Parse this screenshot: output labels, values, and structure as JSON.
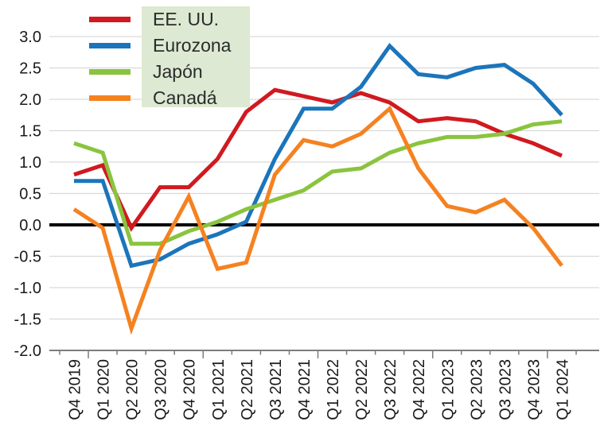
{
  "chart_data": {
    "type": "line",
    "title": "",
    "xlabel": "",
    "ylabel": "",
    "categories": [
      "Q4 2019",
      "Q1 2020",
      "Q2 2020",
      "Q3 2020",
      "Q4 2020",
      "Q1 2021",
      "Q2 2021",
      "Q3 2021",
      "Q4 2021",
      "Q1 2022",
      "Q2 2022",
      "Q3 2022",
      "Q4 2022",
      "Q1 2023",
      "Q2 2023",
      "Q3 2023",
      "Q4 2023",
      "Q1 2024"
    ],
    "series": [
      {
        "name": "EE. UU.",
        "color": "#d11920",
        "values": [
          0.8,
          0.95,
          -0.05,
          0.6,
          0.6,
          1.05,
          1.8,
          2.15,
          2.05,
          1.95,
          2.1,
          1.95,
          1.65,
          1.7,
          1.65,
          1.45,
          1.3,
          1.1
        ]
      },
      {
        "name": "Eurozona",
        "color": "#1b75bb",
        "values": [
          0.7,
          0.7,
          -0.65,
          -0.55,
          -0.3,
          -0.15,
          0.05,
          1.05,
          1.85,
          1.85,
          2.2,
          2.85,
          2.4,
          2.35,
          2.5,
          2.55,
          2.25,
          1.75
        ]
      },
      {
        "name": "Japón",
        "color": "#8ac43f",
        "values": [
          1.3,
          1.15,
          -0.3,
          -0.3,
          -0.1,
          0.05,
          0.25,
          0.4,
          0.55,
          0.85,
          0.9,
          1.15,
          1.3,
          1.4,
          1.4,
          1.45,
          1.6,
          1.65
        ]
      },
      {
        "name": "Canadá",
        "color": "#f58220",
        "values": [
          0.25,
          -0.05,
          -1.65,
          -0.4,
          0.45,
          -0.7,
          -0.6,
          0.8,
          1.35,
          1.25,
          1.45,
          1.85,
          0.9,
          0.3,
          0.2,
          0.4,
          -0.05,
          -0.65
        ]
      }
    ],
    "ylim": [
      -2.0,
      3.0
    ],
    "y_ticks": [
      "3.0",
      "2.5",
      "2.0",
      "1.5",
      "1.0",
      "0.5",
      "0.0",
      "-0.5",
      "-1.0",
      "-1.5",
      "-2.0"
    ],
    "grid": true,
    "zero_line": true,
    "legend_position": "top-left",
    "style": {
      "grid_color": "#d9d9d9",
      "zero_line_color": "#000000",
      "axis_color": "#7c7c7c",
      "label_color": "#1a1a1a",
      "line_width": 5
    }
  },
  "legend": {
    "background": "#dde9d2"
  }
}
